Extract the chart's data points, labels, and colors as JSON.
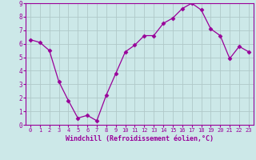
{
  "x": [
    0,
    1,
    2,
    3,
    4,
    5,
    6,
    7,
    8,
    9,
    10,
    11,
    12,
    13,
    14,
    15,
    16,
    17,
    18,
    19,
    20,
    21,
    22,
    23
  ],
  "y": [
    6.3,
    6.1,
    5.5,
    3.2,
    1.8,
    0.5,
    0.7,
    0.3,
    2.2,
    3.8,
    5.4,
    5.9,
    6.6,
    6.6,
    7.5,
    7.9,
    8.6,
    9.0,
    8.5,
    7.1,
    6.6,
    4.9,
    5.8,
    5.4
  ],
  "line_color": "#990099",
  "marker": "D",
  "marker_size": 2.5,
  "bg_color": "#cce8e8",
  "grid_color": "#b0c8c8",
  "xlabel": "Windchill (Refroidissement éolien,°C)",
  "xlim": [
    -0.5,
    23.5
  ],
  "ylim": [
    0,
    9
  ],
  "xticks": [
    0,
    1,
    2,
    3,
    4,
    5,
    6,
    7,
    8,
    9,
    10,
    11,
    12,
    13,
    14,
    15,
    16,
    17,
    18,
    19,
    20,
    21,
    22,
    23
  ],
  "yticks": [
    0,
    1,
    2,
    3,
    4,
    5,
    6,
    7,
    8,
    9
  ],
  "tick_color": "#990099",
  "label_color": "#990099",
  "spine_color": "#990099"
}
